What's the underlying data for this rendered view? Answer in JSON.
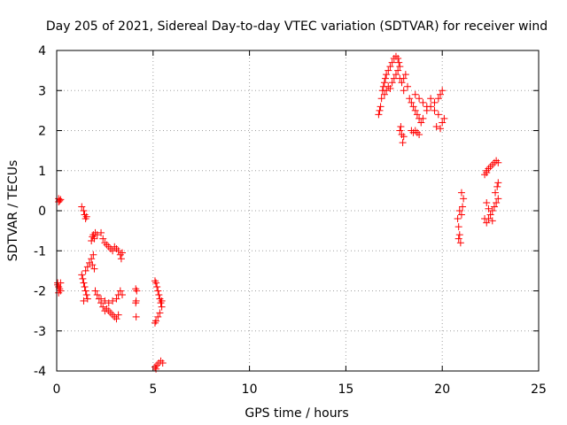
{
  "chart_data": {
    "type": "scatter",
    "title": "Day 205 of 2021, Sidereal Day-to-day VTEC variation (SDTVAR) for receiver wind",
    "xlabel": "GPS time / hours",
    "ylabel": "SDTVAR / TECUs",
    "xlim": [
      0,
      25
    ],
    "ylim": [
      -4,
      4
    ],
    "xticks": [
      "0",
      "5",
      "10",
      "15",
      "20",
      "25"
    ],
    "yticks": [
      "-4",
      "-3",
      "-2",
      "-1",
      "0",
      "1",
      "2",
      "3",
      "4"
    ],
    "grid": true,
    "marker": "+",
    "color": "#ff0000",
    "series": [
      {
        "name": "SDTVAR",
        "points": [
          [
            0.1,
            0.3
          ],
          [
            0.15,
            0.25
          ],
          [
            0.2,
            0.28
          ],
          [
            0.1,
            0.22
          ],
          [
            0.05,
            -1.8
          ],
          [
            0.1,
            -1.9
          ],
          [
            0.15,
            -1.95
          ],
          [
            0.2,
            -2.0
          ],
          [
            0.1,
            -2.05
          ],
          [
            0.05,
            -1.85
          ],
          [
            0.2,
            -1.8
          ],
          [
            1.3,
            0.1
          ],
          [
            1.4,
            0.0
          ],
          [
            1.45,
            -0.1
          ],
          [
            1.5,
            -0.2
          ],
          [
            1.55,
            -0.15
          ],
          [
            1.3,
            -1.6
          ],
          [
            1.35,
            -1.7
          ],
          [
            1.4,
            -1.8
          ],
          [
            1.45,
            -1.9
          ],
          [
            1.5,
            -2.0
          ],
          [
            1.55,
            -2.1
          ],
          [
            1.6,
            -2.2
          ],
          [
            1.4,
            -2.25
          ],
          [
            1.5,
            -1.5
          ],
          [
            1.6,
            -1.4
          ],
          [
            1.7,
            -1.3
          ],
          [
            1.8,
            -1.2
          ],
          [
            1.9,
            -1.1
          ],
          [
            1.85,
            -1.35
          ],
          [
            1.95,
            -1.45
          ],
          [
            1.8,
            -0.75
          ],
          [
            1.85,
            -0.65
          ],
          [
            1.9,
            -0.6
          ],
          [
            2.0,
            -0.55
          ],
          [
            2.1,
            -0.6
          ],
          [
            1.95,
            -0.7
          ],
          [
            2.0,
            -2.0
          ],
          [
            2.1,
            -2.1
          ],
          [
            2.2,
            -2.2
          ],
          [
            2.3,
            -2.3
          ],
          [
            2.4,
            -2.4
          ],
          [
            2.5,
            -2.5
          ],
          [
            2.6,
            -2.45
          ],
          [
            2.7,
            -2.5
          ],
          [
            2.8,
            -2.55
          ],
          [
            2.9,
            -2.6
          ],
          [
            3.0,
            -2.65
          ],
          [
            3.1,
            -2.7
          ],
          [
            3.2,
            -2.6
          ],
          [
            2.3,
            -2.2
          ],
          [
            2.5,
            -2.25
          ],
          [
            2.7,
            -2.3
          ],
          [
            2.9,
            -2.25
          ],
          [
            3.1,
            -2.2
          ],
          [
            3.2,
            -2.1
          ],
          [
            3.3,
            -2.0
          ],
          [
            3.4,
            -2.1
          ],
          [
            2.3,
            -0.55
          ],
          [
            2.4,
            -0.7
          ],
          [
            2.5,
            -0.8
          ],
          [
            2.6,
            -0.85
          ],
          [
            2.7,
            -0.9
          ],
          [
            2.8,
            -0.95
          ],
          [
            2.9,
            -1.0
          ],
          [
            3.0,
            -0.9
          ],
          [
            3.1,
            -0.95
          ],
          [
            3.2,
            -1.0
          ],
          [
            3.3,
            -1.1
          ],
          [
            3.35,
            -1.2
          ],
          [
            3.4,
            -1.05
          ],
          [
            4.1,
            -1.95
          ],
          [
            4.15,
            -2.0
          ],
          [
            4.12,
            -2.25
          ],
          [
            4.1,
            -2.3
          ],
          [
            4.12,
            -2.65
          ],
          [
            5.1,
            -1.75
          ],
          [
            5.15,
            -1.8
          ],
          [
            5.2,
            -1.9
          ],
          [
            5.25,
            -2.0
          ],
          [
            5.3,
            -2.1
          ],
          [
            5.35,
            -2.2
          ],
          [
            5.4,
            -2.3
          ],
          [
            5.45,
            -2.4
          ],
          [
            5.35,
            -2.55
          ],
          [
            5.25,
            -2.65
          ],
          [
            5.15,
            -2.75
          ],
          [
            5.1,
            -2.8
          ],
          [
            5.45,
            -2.25
          ],
          [
            5.1,
            -3.9
          ],
          [
            5.2,
            -3.85
          ],
          [
            5.3,
            -3.8
          ],
          [
            5.4,
            -3.75
          ],
          [
            5.5,
            -3.8
          ],
          [
            5.15,
            -3.95
          ],
          [
            16.7,
            2.4
          ],
          [
            16.75,
            2.5
          ],
          [
            16.8,
            2.6
          ],
          [
            16.85,
            2.8
          ],
          [
            16.9,
            3.0
          ],
          [
            16.95,
            3.1
          ],
          [
            17.0,
            3.2
          ],
          [
            17.05,
            3.3
          ],
          [
            17.1,
            3.4
          ],
          [
            17.2,
            3.5
          ],
          [
            17.3,
            3.6
          ],
          [
            17.4,
            3.7
          ],
          [
            17.5,
            3.8
          ],
          [
            17.6,
            3.85
          ],
          [
            17.7,
            3.8
          ],
          [
            17.75,
            3.7
          ],
          [
            17.8,
            3.6
          ],
          [
            17.0,
            2.9
          ],
          [
            17.1,
            3.0
          ],
          [
            17.2,
            3.1
          ],
          [
            17.3,
            3.05
          ],
          [
            17.4,
            3.2
          ],
          [
            17.5,
            3.3
          ],
          [
            17.6,
            3.4
          ],
          [
            17.7,
            3.5
          ],
          [
            17.8,
            3.3
          ],
          [
            17.9,
            3.2
          ],
          [
            18.0,
            3.3
          ],
          [
            18.1,
            3.4
          ],
          [
            18.0,
            3.0
          ],
          [
            18.2,
            3.1
          ],
          [
            18.3,
            2.8
          ],
          [
            18.4,
            2.7
          ],
          [
            18.5,
            2.6
          ],
          [
            18.6,
            2.5
          ],
          [
            18.7,
            2.4
          ],
          [
            18.8,
            2.3
          ],
          [
            18.9,
            2.2
          ],
          [
            19.0,
            2.3
          ],
          [
            19.2,
            2.5
          ],
          [
            19.4,
            2.6
          ],
          [
            19.6,
            2.7
          ],
          [
            19.8,
            2.8
          ],
          [
            19.9,
            2.9
          ],
          [
            20.0,
            3.0
          ],
          [
            18.6,
            2.9
          ],
          [
            18.8,
            2.8
          ],
          [
            19.0,
            2.7
          ],
          [
            19.2,
            2.6
          ],
          [
            19.4,
            2.8
          ],
          [
            19.6,
            2.5
          ],
          [
            19.8,
            2.4
          ],
          [
            20.0,
            2.2
          ],
          [
            20.1,
            2.3
          ],
          [
            19.7,
            2.1
          ],
          [
            19.9,
            2.05
          ],
          [
            18.4,
            2.0
          ],
          [
            18.5,
            1.95
          ],
          [
            18.6,
            2.0
          ],
          [
            18.7,
            1.95
          ],
          [
            18.8,
            1.9
          ],
          [
            17.8,
            2.0
          ],
          [
            17.9,
            1.9
          ],
          [
            18.0,
            1.85
          ],
          [
            17.95,
            1.7
          ],
          [
            17.85,
            2.1
          ],
          [
            20.8,
            -0.2
          ],
          [
            20.85,
            -0.4
          ],
          [
            20.9,
            -0.6
          ],
          [
            20.95,
            -0.8
          ],
          [
            21.0,
            -0.1
          ],
          [
            21.05,
            0.1
          ],
          [
            21.1,
            0.3
          ],
          [
            21.0,
            0.45
          ],
          [
            20.9,
            0.0
          ],
          [
            20.85,
            -0.7
          ],
          [
            22.2,
            0.9
          ],
          [
            22.3,
            1.0
          ],
          [
            22.4,
            1.05
          ],
          [
            22.5,
            1.1
          ],
          [
            22.6,
            1.15
          ],
          [
            22.7,
            1.2
          ],
          [
            22.8,
            1.25
          ],
          [
            22.9,
            1.2
          ],
          [
            22.3,
            0.95
          ],
          [
            22.2,
            -0.2
          ],
          [
            22.3,
            -0.3
          ],
          [
            22.4,
            -0.2
          ],
          [
            22.5,
            -0.1
          ],
          [
            22.6,
            0.0
          ],
          [
            22.7,
            0.1
          ],
          [
            22.8,
            0.2
          ],
          [
            22.9,
            0.3
          ],
          [
            22.75,
            0.45
          ],
          [
            22.85,
            0.6
          ],
          [
            22.9,
            0.7
          ],
          [
            22.3,
            0.2
          ],
          [
            22.4,
            0.05
          ],
          [
            22.6,
            -0.25
          ]
        ]
      }
    ]
  }
}
